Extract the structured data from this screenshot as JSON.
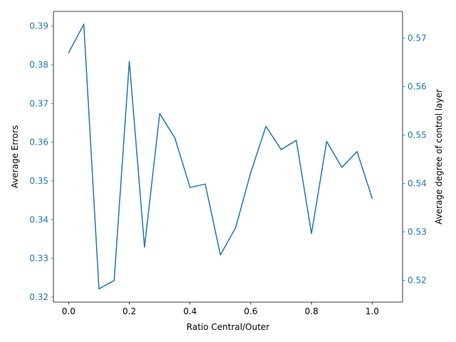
{
  "chart_data": {
    "type": "line",
    "xlabel": "Ratio Central/Outer",
    "ylabel": "Average Errors",
    "y2label": "Average degree of control layer",
    "xlim": [
      -0.05,
      1.1
    ],
    "ylim": [
      0.3187,
      0.3938
    ],
    "y2lim": [
      0.5155,
      0.5755
    ],
    "xticks": [
      0.0,
      0.2,
      0.4,
      0.6,
      0.8,
      1.0
    ],
    "xtick_labels": [
      "0.0",
      "0.2",
      "0.4",
      "0.6",
      "0.8",
      "1.0"
    ],
    "yticks": [
      0.32,
      0.33,
      0.34,
      0.35,
      0.36,
      0.37,
      0.38,
      0.39
    ],
    "ytick_labels": [
      "0.32",
      "0.33",
      "0.34",
      "0.35",
      "0.36",
      "0.37",
      "0.38",
      "0.39"
    ],
    "y2ticks": [
      0.52,
      0.53,
      0.54,
      0.55,
      0.56,
      0.57
    ],
    "y2tick_labels": [
      "0.52",
      "0.53",
      "0.54",
      "0.55",
      "0.56",
      "0.57"
    ],
    "grid": false,
    "line_color": "#1f77b4",
    "tick_color_left": "#1f77b4",
    "tick_color_right": "#1f77b4",
    "series": [
      {
        "x": [
          0.0,
          0.05,
          0.1,
          0.15,
          0.2,
          0.25,
          0.3,
          0.35,
          0.4,
          0.45,
          0.5,
          0.55,
          0.6,
          0.65,
          0.7,
          0.75,
          0.8,
          0.85,
          0.9,
          0.95,
          1.0
        ],
        "values": [
          0.3831,
          0.3905,
          0.3221,
          0.3243,
          0.3809,
          0.3329,
          0.3674,
          0.3611,
          0.3483,
          0.3492,
          0.3309,
          0.3379,
          0.3522,
          0.3641,
          0.3581,
          0.3605,
          0.3364,
          0.3602,
          0.3535,
          0.3576,
          0.3455
        ]
      }
    ]
  }
}
